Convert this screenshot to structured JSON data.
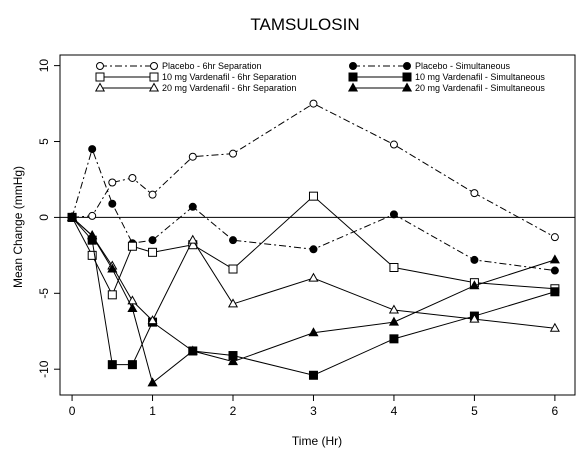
{
  "chart_data": {
    "type": "line",
    "title": "TAMSULOSIN",
    "xlabel": "Time (Hr)",
    "ylabel": "Mean Change (mmHg)",
    "xlim": [
      -0.15,
      6.25
    ],
    "ylim": [
      -11.7,
      10.7
    ],
    "x_ticks": [
      0,
      1,
      2,
      3,
      4,
      5,
      6
    ],
    "y_ticks": [
      -10,
      -5,
      0,
      5,
      10
    ],
    "reference_line_y": 0,
    "grid": false,
    "legend_position": "top",
    "series": [
      {
        "name": "Placebo - 6hr Separation",
        "line": "dashdot",
        "marker": "open-circle",
        "x": [
          0,
          0.25,
          0.5,
          0.75,
          1,
          1.5,
          2,
          3,
          4,
          5,
          6
        ],
        "y": [
          0,
          0.1,
          2.3,
          2.6,
          1.5,
          4.0,
          4.2,
          7.5,
          4.8,
          1.6,
          -1.3
        ]
      },
      {
        "name": "Placebo - Simultaneous",
        "line": "dashdot",
        "marker": "filled-circle",
        "x": [
          0,
          0.25,
          0.5,
          0.75,
          1,
          1.5,
          2,
          3,
          4,
          5,
          6
        ],
        "y": [
          0,
          4.5,
          0.9,
          -1.7,
          -1.5,
          0.7,
          -1.5,
          -2.1,
          0.2,
          -2.8,
          -3.5
        ]
      },
      {
        "name": "10 mg Vardenafil - 6hr Separation",
        "line": "solid",
        "marker": "open-square",
        "x": [
          0,
          0.25,
          0.5,
          0.75,
          1,
          1.5,
          2,
          3,
          4,
          5,
          6
        ],
        "y": [
          0,
          -2.5,
          -5.1,
          -1.9,
          -2.3,
          -1.8,
          -3.4,
          1.4,
          -3.3,
          -4.3,
          -4.7
        ]
      },
      {
        "name": "10 mg Vardenafil - Simultaneous",
        "line": "solid",
        "marker": "filled-square",
        "x": [
          0,
          0.25,
          0.5,
          0.75,
          1,
          1.5,
          2,
          3,
          4,
          5,
          6
        ],
        "y": [
          0,
          -1.5,
          -9.7,
          -9.7,
          -6.9,
          -8.8,
          -9.1,
          -10.4,
          -8.0,
          -6.5,
          -4.9
        ]
      },
      {
        "name": "20 mg Vardenafil - 6hr Separation",
        "line": "solid",
        "marker": "open-triangle",
        "x": [
          0,
          0.25,
          0.5,
          0.75,
          1,
          1.5,
          2,
          3,
          4,
          5,
          6
        ],
        "y": [
          0,
          -1.2,
          -3.2,
          -5.5,
          -6.8,
          -1.5,
          -5.7,
          -4.0,
          -6.1,
          -6.7,
          -7.3
        ]
      },
      {
        "name": "20 mg Vardenafil - Simultaneous",
        "line": "solid",
        "marker": "filled-triangle",
        "x": [
          0,
          0.25,
          0.5,
          0.75,
          1,
          1.5,
          2,
          3,
          4,
          5,
          6
        ],
        "y": [
          0,
          -1.2,
          -3.4,
          -6.0,
          -10.9,
          -8.8,
          -9.5,
          -7.6,
          -6.9,
          -4.5,
          -2.8
        ]
      }
    ]
  }
}
